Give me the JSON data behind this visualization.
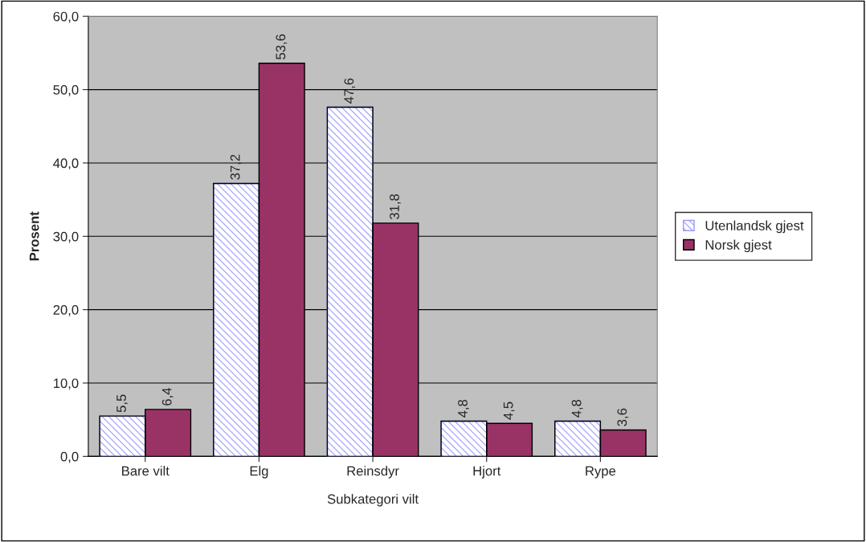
{
  "chart_data": {
    "type": "bar",
    "xlabel": "Subkategori vilt",
    "ylabel": "Prosent",
    "categories": [
      "Bare vilt",
      "Elg",
      "Reinsdyr",
      "Hjort",
      "Rype"
    ],
    "series": [
      {
        "name": "Utenlandsk gjest",
        "color": "#9999ff",
        "values": [
          5.5,
          37.2,
          47.6,
          4.8,
          4.8
        ],
        "value_labels": [
          "5,5",
          "37,2",
          "47,6",
          "4,8",
          "4,8"
        ]
      },
      {
        "name": "Norsk gjest",
        "color": "#993366",
        "values": [
          6.4,
          53.6,
          31.8,
          4.5,
          3.6
        ],
        "value_labels": [
          "6,4",
          "53,6",
          "31,8",
          "4,5",
          "3,6"
        ]
      }
    ],
    "ylim": [
      0,
      60
    ],
    "yticks": [
      {
        "value": 0,
        "label": "0,0"
      },
      {
        "value": 10,
        "label": "10,0"
      },
      {
        "value": 20,
        "label": "20,0"
      },
      {
        "value": 30,
        "label": "30,0"
      },
      {
        "value": 40,
        "label": "40,0"
      },
      {
        "value": 50,
        "label": "50,0"
      },
      {
        "value": 60,
        "label": "60,0"
      }
    ],
    "grid": "y",
    "legend": "right"
  }
}
